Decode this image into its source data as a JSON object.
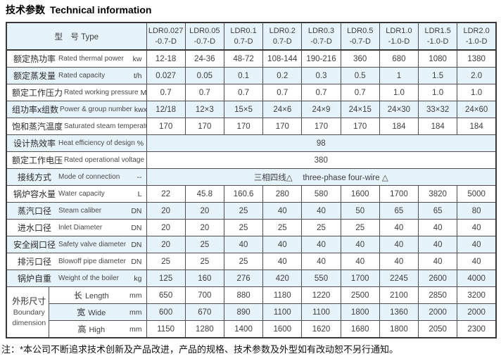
{
  "title": {
    "zh": "技术参数",
    "en": "Technical information"
  },
  "table": {
    "type_header": "型　号 Type",
    "models": [
      {
        "line1": "LDR0.027",
        "line2": "-0.7-D"
      },
      {
        "line1": "LDR0.05",
        "line2": "-0.7-D"
      },
      {
        "line1": "LDR0.1",
        "line2": "0.7-D"
      },
      {
        "line1": "LDR0.2",
        "line2": "0.7-D"
      },
      {
        "line1": "LDR0.3",
        "line2": "-0.7-D"
      },
      {
        "line1": "LDR0.5",
        "line2": "-0.7-D"
      },
      {
        "line1": "LDR1.0",
        "line2": "-1.0-D"
      },
      {
        "line1": "LDR1.5",
        "line2": "-1.0-D"
      },
      {
        "line1": "LDR2.0",
        "line2": "-1.0-D"
      }
    ],
    "dimension_group": {
      "zh": "外形尺寸",
      "en": "Boundary dimension"
    },
    "rows": [
      {
        "zh": "额定热功率",
        "en": "Rated thermal power",
        "unit": "kw",
        "values": [
          "12-18",
          "24-36",
          "48-72",
          "108-144",
          "190-216",
          "360",
          "680",
          "1080",
          "1380"
        ]
      },
      {
        "zh": "额定蒸发量",
        "en": "Rated capacity",
        "unit": "t/h",
        "values": [
          "0.027",
          "0.05",
          "0.1",
          "0.2",
          "0.3",
          "0.5",
          "1",
          "1.5",
          "2.0"
        ]
      },
      {
        "zh": "额定工作压力",
        "en": "Rated working pressure",
        "unit": "Mpa",
        "values": [
          "0.7",
          "0.7",
          "0.7",
          "0.7",
          "0.7",
          "0.7",
          "1.0",
          "1.0",
          "1.0"
        ]
      },
      {
        "zh": "组功率x组数",
        "en": "Power & group number",
        "unit": "kwxn",
        "values": [
          "12/18",
          "12×3",
          "15×5",
          "24×6",
          "24×9",
          "24×15",
          "24×30",
          "33×32",
          "24×60"
        ]
      },
      {
        "zh": "饱和蒸汽温度",
        "en": "Saturated steam temperature",
        "unit": "℃",
        "values": [
          "170",
          "170",
          "170",
          "170",
          "170",
          "170",
          "184",
          "184",
          "184"
        ]
      },
      {
        "zh": "设计热效率",
        "en": "Heat efficiency of design",
        "unit": "%",
        "merged": "98"
      },
      {
        "zh": "额定工作电压",
        "en": "Rated operational voltage",
        "unit": "v",
        "merged": "380"
      },
      {
        "zh": "接线方式",
        "en": "Mode of connection",
        "unit": "--",
        "merged": "三相四线△　 three-phase four-wire △"
      },
      {
        "zh": "锅炉容水量",
        "en": "Water capacity",
        "unit": "L",
        "values": [
          "22",
          "45.8",
          "160.6",
          "280",
          "580",
          "1600",
          "1700",
          "3820",
          "5000"
        ]
      },
      {
        "zh": "蒸汽口径",
        "en": "Steam caliber",
        "unit": "DN",
        "values": [
          "20",
          "20",
          "25",
          "40",
          "40",
          "50",
          "65",
          "65",
          "80"
        ]
      },
      {
        "zh": "进水口径",
        "en": "Inlet Diameter",
        "unit": "DN",
        "values": [
          "20",
          "20",
          "25",
          "25",
          "25",
          "25",
          "40",
          "40",
          "40"
        ]
      },
      {
        "zh": "安全阀口径",
        "en": "Safety valve diameter",
        "unit": "DN",
        "values": [
          "20",
          "25",
          "40",
          "40",
          "40",
          "40",
          "40",
          "40",
          "40"
        ]
      },
      {
        "zh": "排污口径",
        "en": "Blowoff pipe diameter",
        "unit": "DN",
        "values": [
          "25",
          "25",
          "25",
          "40",
          "40",
          "40",
          "40",
          "40",
          "40"
        ]
      },
      {
        "zh": "锅炉自重",
        "en": "Weight of the boiler",
        "unit": "kg",
        "values": [
          "125",
          "160",
          "276",
          "420",
          "550",
          "1700",
          "2245",
          "2600",
          "4000"
        ]
      },
      {
        "zh": "长",
        "en": "Length",
        "unit": "mm",
        "group": true,
        "values": [
          "650",
          "700",
          "880",
          "1180",
          "1220",
          "2500",
          "2100",
          "2850",
          "3200"
        ]
      },
      {
        "zh": "宽",
        "en": "Wide",
        "unit": "mm",
        "group": true,
        "values": [
          "600",
          "670",
          "890",
          "1100",
          "1100",
          "1800",
          "1360",
          "2000",
          "2000"
        ]
      },
      {
        "zh": "高",
        "en": "High",
        "unit": "mm",
        "group": true,
        "values": [
          "1150",
          "1280",
          "1400",
          "1600",
          "1620",
          "1680",
          "1800",
          "2050",
          "2300"
        ]
      }
    ]
  },
  "note": "注：*本公司不断追求技术创新及产品改进，产品的规格、技术参数及外型如有改动恕不另行通知。",
  "colors": {
    "row_highlight": "#e7f3fb",
    "border": "#4f4f4f",
    "outer_border": "#383838"
  }
}
